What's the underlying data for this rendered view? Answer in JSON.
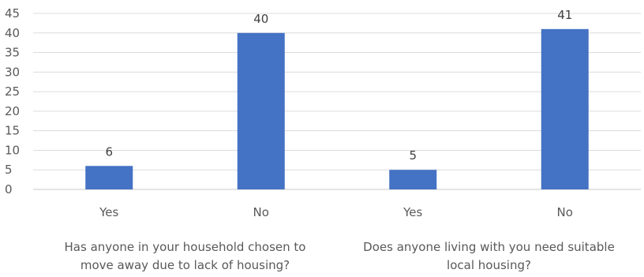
{
  "chart_data": {
    "type": "bar",
    "title": "",
    "xlabel": "",
    "ylabel": "",
    "ylim": [
      0,
      45
    ],
    "yticks": [
      0,
      5,
      10,
      15,
      20,
      25,
      30,
      35,
      40,
      45
    ],
    "grid": true,
    "legend": "none",
    "bar_color": "#4472C4",
    "groups": [
      {
        "label_lines": [
          "Has anyone in your household  chosen to",
          "move away due to lack of housing?"
        ],
        "categories": [
          "Yes",
          "No"
        ],
        "values": [
          6,
          40
        ]
      },
      {
        "label_lines": [
          "Does anyone living with you need suitable",
          "local housing?"
        ],
        "categories": [
          "Yes",
          "No"
        ],
        "values": [
          5,
          41
        ]
      }
    ]
  }
}
